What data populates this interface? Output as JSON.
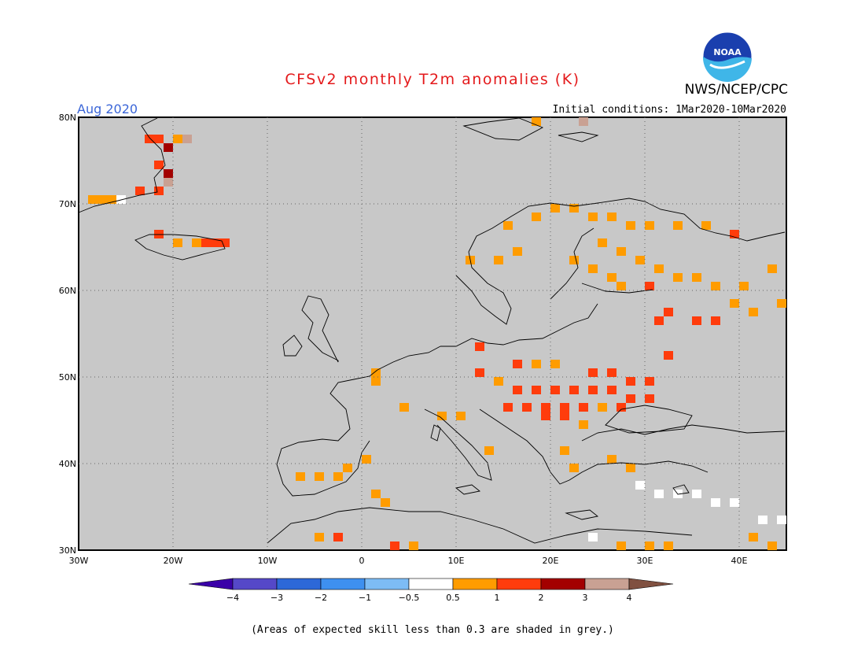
{
  "header": {
    "title": "CFSv2 monthly T2m anomalies (K)",
    "org": "NWS/NCEP/CPC",
    "month": "Aug 2020",
    "initial_conditions": "Initial conditions: 1Mar2020-10Mar2020",
    "logo_text": "NOAA"
  },
  "map": {
    "lon_range": [
      -30,
      45
    ],
    "lat_range": [
      30,
      80
    ],
    "lat_labels": [
      "30N",
      "40N",
      "50N",
      "60N",
      "70N",
      "80N"
    ],
    "lon_labels": [
      "30W",
      "20W",
      "10W",
      "0",
      "10E",
      "20E",
      "30E",
      "40E"
    ],
    "land_color": "#c8c8c8",
    "sea_color": "#c8c8c8",
    "anomaly_cells": [
      {
        "lon": -29,
        "lat": 70,
        "cat": "0.5-1"
      },
      {
        "lon": -28,
        "lat": 70,
        "cat": "0.5-1"
      },
      {
        "lon": -27,
        "lat": 70,
        "cat": "0.5-1"
      },
      {
        "lon": -26,
        "lat": 70,
        "cat": "-0.5-0.5"
      },
      {
        "lon": -24,
        "lat": 71,
        "cat": "1-2"
      },
      {
        "lon": -22,
        "lat": 71,
        "cat": "1-2"
      },
      {
        "lon": -22,
        "lat": 74,
        "cat": "1-2"
      },
      {
        "lon": -21,
        "lat": 73,
        "cat": "2-3"
      },
      {
        "lon": -21,
        "lat": 76,
        "cat": "2-3"
      },
      {
        "lon": -22,
        "lat": 77,
        "cat": "1-2"
      },
      {
        "lon": -23,
        "lat": 77,
        "cat": "1-2"
      },
      {
        "lon": -20,
        "lat": 77,
        "cat": "0.5-1"
      },
      {
        "lon": -19,
        "lat": 77,
        "cat": "3-4"
      },
      {
        "lon": -21,
        "lat": 72,
        "cat": "3-4"
      },
      {
        "lon": -22,
        "lat": 66,
        "cat": "1-2"
      },
      {
        "lon": -20,
        "lat": 65,
        "cat": "0.5-1"
      },
      {
        "lon": -18,
        "lat": 65,
        "cat": "0.5-1"
      },
      {
        "lon": -17,
        "lat": 65,
        "cat": "1-2"
      },
      {
        "lon": -16,
        "lat": 65,
        "cat": "1-2"
      },
      {
        "lon": -15,
        "lat": 65,
        "cat": "1-2"
      },
      {
        "lon": 18,
        "lat": 79,
        "cat": "0.5-1"
      },
      {
        "lon": 23,
        "lat": 79,
        "cat": "3-4"
      },
      {
        "lon": 15,
        "lat": 67,
        "cat": "0.5-1"
      },
      {
        "lon": 18,
        "lat": 68,
        "cat": "0.5-1"
      },
      {
        "lon": 20,
        "lat": 69,
        "cat": "0.5-1"
      },
      {
        "lon": 22,
        "lat": 69,
        "cat": "0.5-1"
      },
      {
        "lon": 24,
        "lat": 68,
        "cat": "0.5-1"
      },
      {
        "lon": 26,
        "lat": 68,
        "cat": "0.5-1"
      },
      {
        "lon": 28,
        "lat": 67,
        "cat": "0.5-1"
      },
      {
        "lon": 30,
        "lat": 67,
        "cat": "0.5-1"
      },
      {
        "lon": 33,
        "lat": 67,
        "cat": "0.5-1"
      },
      {
        "lon": 36,
        "lat": 67,
        "cat": "0.5-1"
      },
      {
        "lon": 39,
        "lat": 66,
        "cat": "1-2"
      },
      {
        "lon": 25,
        "lat": 65,
        "cat": "0.5-1"
      },
      {
        "lon": 27,
        "lat": 64,
        "cat": "0.5-1"
      },
      {
        "lon": 29,
        "lat": 63,
        "cat": "0.5-1"
      },
      {
        "lon": 31,
        "lat": 62,
        "cat": "0.5-1"
      },
      {
        "lon": 33,
        "lat": 61,
        "cat": "0.5-1"
      },
      {
        "lon": 35,
        "lat": 61,
        "cat": "0.5-1"
      },
      {
        "lon": 37,
        "lat": 60,
        "cat": "0.5-1"
      },
      {
        "lon": 40,
        "lat": 60,
        "cat": "0.5-1"
      },
      {
        "lon": 43,
        "lat": 62,
        "cat": "0.5-1"
      },
      {
        "lon": 44,
        "lat": 58,
        "cat": "0.5-1"
      },
      {
        "lon": 30,
        "lat": 60,
        "cat": "1-2"
      },
      {
        "lon": 31,
        "lat": 56,
        "cat": "1-2"
      },
      {
        "lon": 32,
        "lat": 57,
        "cat": "1-2"
      },
      {
        "lon": 35,
        "lat": 56,
        "cat": "1-2"
      },
      {
        "lon": 37,
        "lat": 56,
        "cat": "1-2"
      },
      {
        "lon": 39,
        "lat": 58,
        "cat": "0.5-1"
      },
      {
        "lon": 41,
        "lat": 57,
        "cat": "0.5-1"
      },
      {
        "lon": 12,
        "lat": 53,
        "cat": "1-2"
      },
      {
        "lon": 16,
        "lat": 51,
        "cat": "1-2"
      },
      {
        "lon": 18,
        "lat": 51,
        "cat": "0.5-1"
      },
      {
        "lon": 20,
        "lat": 51,
        "cat": "0.5-1"
      },
      {
        "lon": 24,
        "lat": 50,
        "cat": "1-2"
      },
      {
        "lon": 26,
        "lat": 50,
        "cat": "1-2"
      },
      {
        "lon": 28,
        "lat": 49,
        "cat": "1-2"
      },
      {
        "lon": 30,
        "lat": 49,
        "cat": "1-2"
      },
      {
        "lon": 32,
        "lat": 52,
        "cat": "1-2"
      },
      {
        "lon": 12,
        "lat": 50,
        "cat": "1-2"
      },
      {
        "lon": 14,
        "lat": 49,
        "cat": "0.5-1"
      },
      {
        "lon": 16,
        "lat": 48,
        "cat": "1-2"
      },
      {
        "lon": 18,
        "lat": 48,
        "cat": "1-2"
      },
      {
        "lon": 20,
        "lat": 48,
        "cat": "1-2"
      },
      {
        "lon": 22,
        "lat": 48,
        "cat": "1-2"
      },
      {
        "lon": 24,
        "lat": 48,
        "cat": "1-2"
      },
      {
        "lon": 26,
        "lat": 48,
        "cat": "1-2"
      },
      {
        "lon": 28,
        "lat": 47,
        "cat": "1-2"
      },
      {
        "lon": 30,
        "lat": 47,
        "cat": "1-2"
      },
      {
        "lon": 15,
        "lat": 46,
        "cat": "1-2"
      },
      {
        "lon": 17,
        "lat": 46,
        "cat": "1-2"
      },
      {
        "lon": 19,
        "lat": 46,
        "cat": "1-2"
      },
      {
        "lon": 21,
        "lat": 46,
        "cat": "1-2"
      },
      {
        "lon": 23,
        "lat": 46,
        "cat": "1-2"
      },
      {
        "lon": 25,
        "lat": 46,
        "cat": "0.5-1"
      },
      {
        "lon": 27,
        "lat": 46,
        "cat": "1-2"
      },
      {
        "lon": 19,
        "lat": 45,
        "cat": "1-2"
      },
      {
        "lon": 21,
        "lat": 45,
        "cat": "1-2"
      },
      {
        "lon": 23,
        "lat": 44,
        "cat": "0.5-1"
      },
      {
        "lon": 1,
        "lat": 50,
        "cat": "0.5-1"
      },
      {
        "lon": 1,
        "lat": 49,
        "cat": "0.5-1"
      },
      {
        "lon": 4,
        "lat": 46,
        "cat": "0.5-1"
      },
      {
        "lon": 8,
        "lat": 45,
        "cat": "0.5-1"
      },
      {
        "lon": 10,
        "lat": 45,
        "cat": "0.5-1"
      },
      {
        "lon": -7,
        "lat": 38,
        "cat": "0.5-1"
      },
      {
        "lon": -5,
        "lat": 38,
        "cat": "0.5-1"
      },
      {
        "lon": -3,
        "lat": 38,
        "cat": "0.5-1"
      },
      {
        "lon": -2,
        "lat": 39,
        "cat": "0.5-1"
      },
      {
        "lon": 0,
        "lat": 40,
        "cat": "0.5-1"
      },
      {
        "lon": 1,
        "lat": 36,
        "cat": "0.5-1"
      },
      {
        "lon": 2,
        "lat": 35,
        "cat": "0.5-1"
      },
      {
        "lon": 13,
        "lat": 41,
        "cat": "0.5-1"
      },
      {
        "lon": 21,
        "lat": 41,
        "cat": "0.5-1"
      },
      {
        "lon": 22,
        "lat": 39,
        "cat": "0.5-1"
      },
      {
        "lon": 26,
        "lat": 40,
        "cat": "0.5-1"
      },
      {
        "lon": 28,
        "lat": 39,
        "cat": "0.5-1"
      },
      {
        "lon": 29,
        "lat": 37,
        "cat": "-0.5-0.5"
      },
      {
        "lon": 31,
        "lat": 36,
        "cat": "-0.5-0.5"
      },
      {
        "lon": 33,
        "lat": 36,
        "cat": "-0.5-0.5"
      },
      {
        "lon": 35,
        "lat": 36,
        "cat": "-0.5-0.5"
      },
      {
        "lon": 37,
        "lat": 35,
        "cat": "-0.5-0.5"
      },
      {
        "lon": 39,
        "lat": 35,
        "cat": "-0.5-0.5"
      },
      {
        "lon": 42,
        "lat": 33,
        "cat": "-0.5-0.5"
      },
      {
        "lon": 44,
        "lat": 33,
        "cat": "-0.5-0.5"
      },
      {
        "lon": 24,
        "lat": 31,
        "cat": "-0.5-0.5"
      },
      {
        "lon": 41,
        "lat": 31,
        "cat": "0.5-1"
      },
      {
        "lon": 43,
        "lat": 30,
        "cat": "0.5-1"
      },
      {
        "lon": -5,
        "lat": 31,
        "cat": "0.5-1"
      },
      {
        "lon": -3,
        "lat": 31,
        "cat": "1-2"
      },
      {
        "lon": 3,
        "lat": 30,
        "cat": "1-2"
      },
      {
        "lon": 5,
        "lat": 30,
        "cat": "0.5-1"
      },
      {
        "lon": 27,
        "lat": 30,
        "cat": "0.5-1"
      },
      {
        "lon": 30,
        "lat": 30,
        "cat": "0.5-1"
      },
      {
        "lon": 32,
        "lat": 30,
        "cat": "0.5-1"
      },
      {
        "lon": 14,
        "lat": 63,
        "cat": "0.5-1"
      },
      {
        "lon": 16,
        "lat": 64,
        "cat": "0.5-1"
      },
      {
        "lon": 11,
        "lat": 63,
        "cat": "0.5-1"
      },
      {
        "lon": 22,
        "lat": 63,
        "cat": "0.5-1"
      },
      {
        "lon": 24,
        "lat": 62,
        "cat": "0.5-1"
      },
      {
        "lon": 26,
        "lat": 61,
        "cat": "0.5-1"
      },
      {
        "lon": 27,
        "lat": 60,
        "cat": "0.5-1"
      }
    ]
  },
  "colorbar": {
    "colors": [
      "#3a00a8",
      "#5548c8",
      "#2d68d8",
      "#3e90f0",
      "#7dbcf5",
      "#ffffff",
      "#ff9c00",
      "#ff3c0c",
      "#a30000",
      "#c9a193",
      "#805040"
    ],
    "labels": [
      "−4",
      "−3",
      "−2",
      "−1",
      "−0.5",
      "0.5",
      "1",
      "2",
      "3",
      "4"
    ],
    "category_colors": {
      "-0.5-0.5": "#ffffff",
      "0.5-1": "#ff9c00",
      "1-2": "#ff3c0c",
      "2-3": "#a30000",
      "3-4": "#c9a193"
    }
  },
  "footnote": "(Areas of expected skill less than 0.3 are shaded in grey.)"
}
